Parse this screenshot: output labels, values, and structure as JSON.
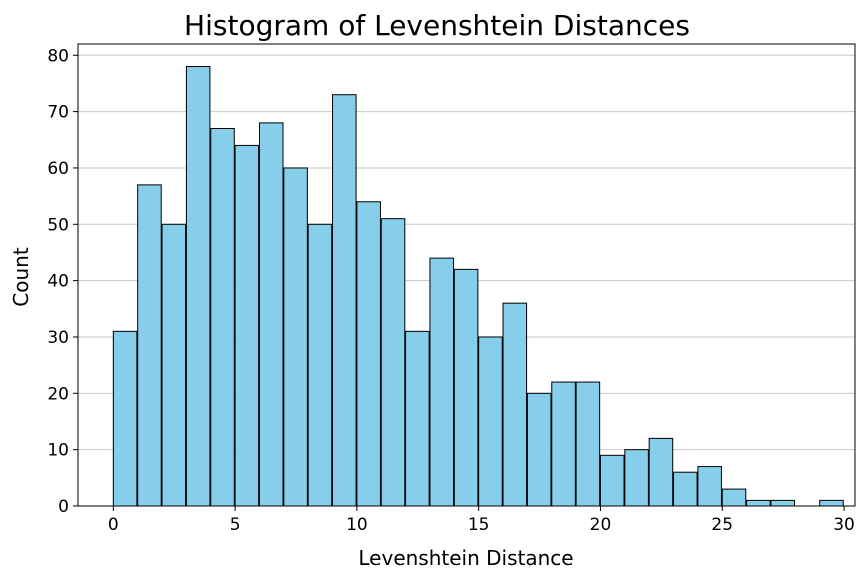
{
  "chart_data": {
    "type": "bar",
    "title": "Histogram of Levenshtein Distances",
    "xlabel": "Levenshtein Distance",
    "ylabel": "Count",
    "bin_edges": [
      0,
      1,
      2,
      3,
      4,
      5,
      6,
      7,
      8,
      9,
      10,
      11,
      12,
      13,
      14,
      15,
      16,
      17,
      18,
      19,
      20,
      21,
      22,
      23,
      24,
      25,
      26,
      27,
      28,
      29
    ],
    "bin_width": 0.9667,
    "values": [
      31,
      57,
      50,
      78,
      67,
      64,
      68,
      60,
      50,
      73,
      54,
      51,
      31,
      44,
      42,
      30,
      36,
      20,
      22,
      22,
      9,
      10,
      12,
      6,
      7,
      3,
      1,
      1,
      0,
      1
    ],
    "xlim": [
      -1.45,
      30.45
    ],
    "ylim": [
      0,
      82
    ],
    "xticks": [
      0,
      5,
      10,
      15,
      20,
      25,
      30
    ],
    "yticks": [
      0,
      10,
      20,
      30,
      40,
      50,
      60,
      70,
      80
    ],
    "grid": "y",
    "bar_color": "#87CEEB",
    "edge_color": "#000000",
    "grid_color": "#c8c8c8"
  }
}
